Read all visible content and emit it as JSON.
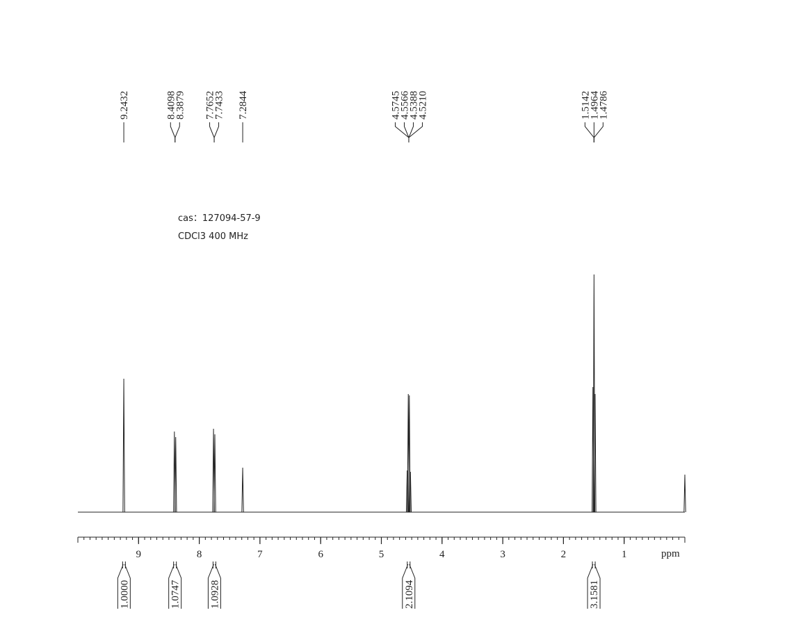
{
  "chart_data": {
    "type": "spectrum",
    "annotations": [
      "cas：127094-57-9",
      "CDCl3   400  MHz"
    ],
    "xlabel": "ppm",
    "xlim": [
      10,
      0
    ],
    "xticks": [
      9,
      8,
      7,
      6,
      5,
      4,
      3,
      2,
      1
    ],
    "ylim": [
      0,
      350
    ],
    "color": "#222222",
    "peaks": {
      "x": [
        9.2432,
        8.4098,
        8.3879,
        7.7652,
        7.7433,
        7.2844,
        4.5745,
        4.5566,
        4.5388,
        4.521,
        1.5142,
        1.4964,
        1.4786,
        0
      ],
      "x_labels": [
        "9.2432",
        "8.4098",
        "8.3879",
        "7.7652",
        "7.7433",
        "7.2844",
        "4.5745",
        "4.5566",
        "4.5388",
        "4.5210",
        "1.5142",
        "1.4964",
        "1.4786",
        null
      ],
      "values": [
        192,
        116,
        108,
        120,
        112,
        64,
        60,
        170,
        168,
        58,
        180,
        342,
        170,
        54
      ]
    },
    "integrals": {
      "x": [
        9.24,
        8.4,
        7.75,
        4.55,
        1.5
      ],
      "values": [
        1,
        1.0747,
        1.0928,
        2.1094,
        3.1581
      ],
      "value_labels": [
        "1.0000",
        "1.0747",
        "1.0928",
        "2.1094",
        "3.1581"
      ]
    }
  }
}
